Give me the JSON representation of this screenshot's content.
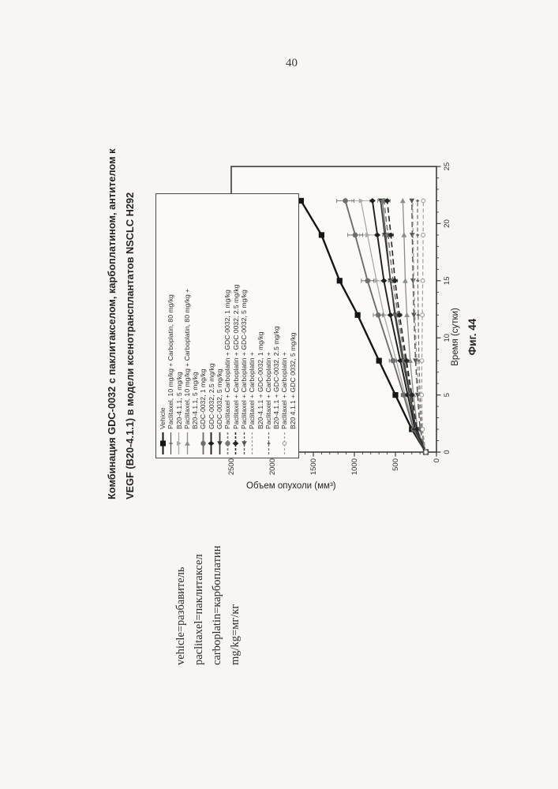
{
  "page": {
    "number": "40"
  },
  "figure": {
    "title_line1": "Комбинация GDC-0032 с паклитакселом, карбоплатином, антителом к",
    "title_line2": "VEGF (B20-4.1.1) в модели ксенотрансплантатов NSCLC H292",
    "caption": "Фиг. 44"
  },
  "notes": {
    "lines": [
      "vehicle=разбавитель",
      "paclitaxel=паклитаксел",
      "carboplatin=карбоплатин",
      "mg/kg=мг/кг"
    ]
  },
  "chart_data": {
    "type": "line",
    "title": "Комбинация GDC-0032 с паклитакселом, карбоплатином, антителом к VEGF (B20-4.1.1) в модели ксенотрансплантатов NSCLC H292",
    "xlabel": "Время (сутки)",
    "ylabel": "Объем опухоли (мм³)",
    "xlim": [
      0,
      25
    ],
    "ylim": [
      0,
      2500
    ],
    "xticks": [
      0,
      5,
      10,
      15,
      20,
      25
    ],
    "yticks": [
      0,
      500,
      1000,
      1500,
      2000,
      2500
    ],
    "x_minor_step": 1,
    "y_minor_step": 100,
    "grid": false,
    "legend_position": "top-left",
    "x": [
      0,
      2,
      5,
      8,
      12,
      15,
      19,
      22
    ],
    "series": [
      {
        "name": "Vehicle",
        "legend_lines": [
          "Vehicle"
        ],
        "values": [
          130,
          300,
          500,
          700,
          960,
          1180,
          1400,
          1650
        ],
        "marker": "square",
        "color": "#151515",
        "dash": null,
        "width": 2.4
      },
      {
        "name": "Paclitaxel, 10 mg/kg + Carboplatin, 80 mg/kg",
        "legend_lines": [
          "Paclitaxel, 10 mg/kg + Carboplatin, 80 mg/kg"
        ],
        "values": [
          130,
          250,
          330,
          415,
          510,
          560,
          615,
          660
        ],
        "marker": "plus",
        "color": "#4a4a4a",
        "dash": null,
        "width": 1.1
      },
      {
        "name": "B20-4.1.1, 5 mg/kg",
        "legend_lines": [
          "B20-4.1.1, 5 mg/kg"
        ],
        "values": [
          130,
          270,
          380,
          490,
          640,
          730,
          840,
          920
        ],
        "err": [
          0,
          25,
          35,
          50,
          65,
          80,
          95,
          110
        ],
        "marker": "tri-down",
        "color": "#a8a8a8",
        "dash": null,
        "width": 1.3
      },
      {
        "name": "Paclitaxel, 10 mg/kg + Carboplatin, 80 mg/kg + B20-4.1.1, 5 mg/kg",
        "legend_lines": [
          "Paclitaxel, 10 mg/kg + Carboplatin, 80 mg/kg +",
          "B20-4.1.1, 5 mg/kg"
        ],
        "values": [
          130,
          230,
          280,
          320,
          360,
          380,
          395,
          410
        ],
        "marker": "tri-right",
        "color": "#8c8c8c",
        "dash": null,
        "width": 1.3
      },
      {
        "name": "GDC-0032, 1 mg/kg",
        "legend_lines": [
          "GDC-0032, 1 mg/kg"
        ],
        "values": [
          130,
          280,
          400,
          530,
          710,
          840,
          990,
          1110
        ],
        "err": [
          0,
          20,
          30,
          45,
          60,
          75,
          90,
          105
        ],
        "marker": "circle",
        "color": "#6e6e6e",
        "dash": null,
        "width": 1.9
      },
      {
        "name": "GDC-0032, 2.5 mg/kg",
        "legend_lines": [
          "GDC-0032, 2.5 mg/kg"
        ],
        "values": [
          130,
          260,
          350,
          440,
          560,
          640,
          720,
          780
        ],
        "marker": "diamond",
        "color": "#1e1e1e",
        "dash": null,
        "width": 1.9
      },
      {
        "name": "GDC-0032, 5 mg/kg",
        "legend_lines": [
          "GDC-0032, 5 mg/kg"
        ],
        "values": [
          130,
          250,
          320,
          400,
          500,
          560,
          630,
          680
        ],
        "marker": "tri-left",
        "color": "#3a3a3a",
        "dash": null,
        "width": 1.7
      },
      {
        "name": "Paclitaxel + Carboplatin + GDC-0032, 1 mg/kg",
        "legend_lines": [
          "Paclitaxel + Carboplatin + GDC-0032, 1 mg/kg"
        ],
        "values": [
          130,
          245,
          310,
          380,
          470,
          530,
          590,
          640
        ],
        "err": [
          0,
          15,
          25,
          35,
          45,
          55,
          65,
          75
        ],
        "marker": "circle",
        "color": "#787878",
        "dash": "7,4",
        "width": 1.6
      },
      {
        "name": "Paclitaxel + Carboplatin + GDC 0032, 2.5 mg/kg",
        "legend_lines": [
          "Paclitaxel + Carboplatin + GDC 0032, 2.5 mg/kg"
        ],
        "values": [
          130,
          240,
          300,
          365,
          450,
          505,
          555,
          600
        ],
        "marker": "diamond",
        "color": "#262626",
        "dash": "7,4",
        "width": 1.6
      },
      {
        "name": "Paclitaxel + Carboplatin + GDC-0032, 5 mg/kg",
        "legend_lines": [
          "Paclitaxel + Carboplatin + GDC-0032, 5 mg/kg"
        ],
        "values": [
          130,
          200,
          230,
          255,
          275,
          285,
          295,
          300
        ],
        "marker": "tri-left",
        "color": "#555555",
        "dash": "7,4",
        "width": 1.4
      },
      {
        "name": "Paclitaxel + Carboplatin + B20-4.1.1 + GDC-0032, 1 mg/kg",
        "legend_lines": [
          "Paclitaxel + Carboplatin +",
          "B20-4.1.1 + GDC-0032, 1 mg/kg"
        ],
        "values": [
          130,
          190,
          215,
          240,
          262,
          275,
          285,
          290
        ],
        "marker": "none",
        "color": "#9a9a9a",
        "dash": "5,3",
        "width": 1.2
      },
      {
        "name": "Paclitaxel + Carboplatin + B20-4.1.1 + GDC-0032, 2.5 mg/kg",
        "legend_lines": [
          "Paclitaxel + Carboplatin +",
          "B20-4.1.1 + GDC-0032, 2.5 mg/kg"
        ],
        "values": [
          130,
          180,
          200,
          213,
          222,
          227,
          230,
          230
        ],
        "marker": "diamond-small",
        "color": "#6a6a6a",
        "dash": "5,3",
        "width": 1.2
      },
      {
        "name": "Paclitaxel + Carboplatin + B20 4.1.1 + GDC 0032, 5 mg/kg",
        "legend_lines": [
          "Paclitaxel + Carboplatin +",
          "B20 4.1.1 + GDC 0032, 5 mg/kg"
        ],
        "values": [
          130,
          170,
          180,
          178,
          172,
          167,
          162,
          160
        ],
        "marker": "circle-open",
        "color": "#9f9f9f",
        "dash": "5,3",
        "width": 1.2
      }
    ]
  }
}
